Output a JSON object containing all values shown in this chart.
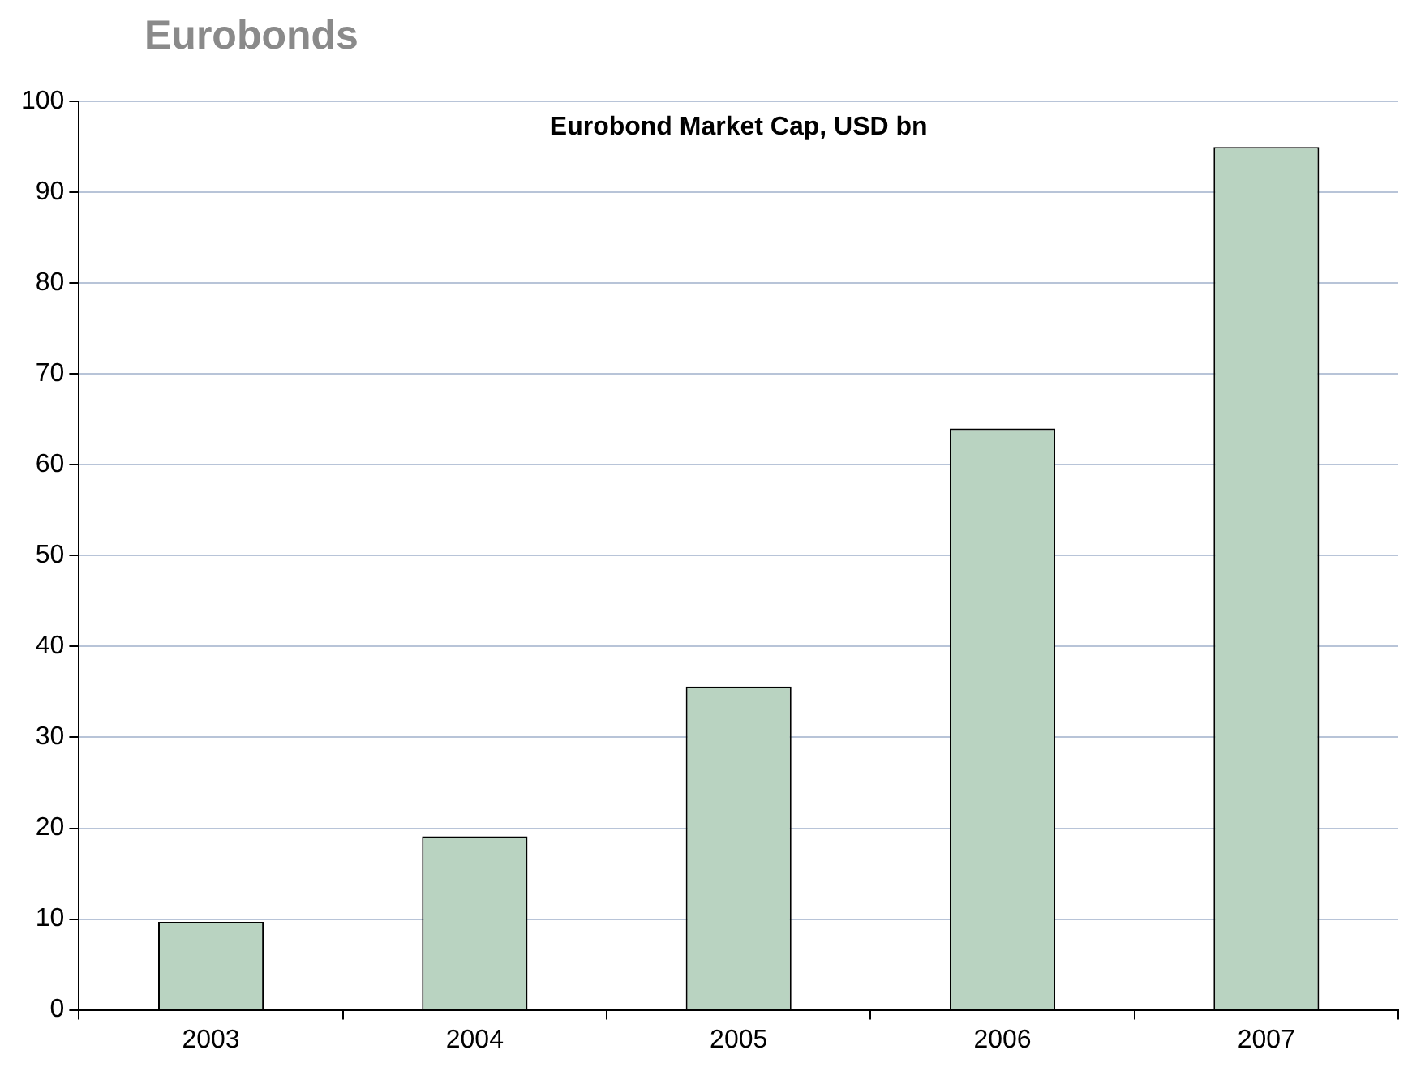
{
  "chart_data": {
    "type": "bar",
    "title": "Eurobonds",
    "subtitle": "Eurobond Market Cap, USD bn",
    "categories": [
      "2003",
      "2004",
      "2005",
      "2006",
      "2007"
    ],
    "values": [
      9.7,
      19.1,
      35.6,
      64,
      95
    ],
    "color": "#b9d3c1",
    "ylim": [
      0,
      100
    ],
    "yticks": [
      0,
      10,
      20,
      30,
      40,
      50,
      60,
      70,
      80,
      90,
      100
    ],
    "grid": "y",
    "legend": false
  }
}
